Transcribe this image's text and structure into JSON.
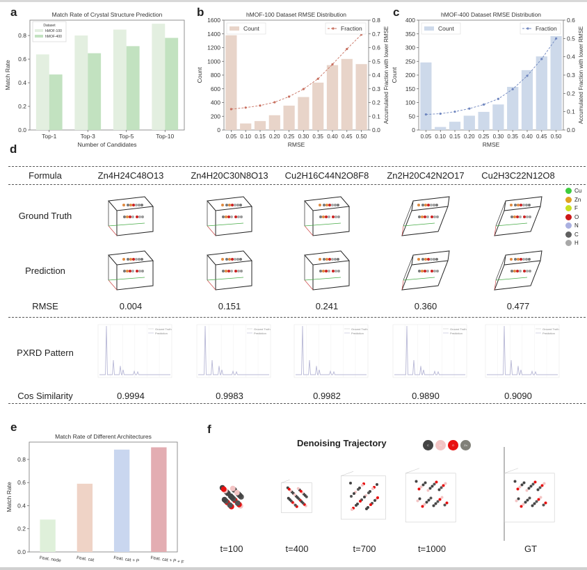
{
  "panels": {
    "a": {
      "letter": "a"
    },
    "b": {
      "letter": "b"
    },
    "c": {
      "letter": "c"
    },
    "d": {
      "letter": "d"
    },
    "e": {
      "letter": "e"
    },
    "f": {
      "letter": "f"
    }
  },
  "chart_data": [
    {
      "id": "a",
      "type": "bar",
      "title": "Match Rate of Crystal Structure Prediction",
      "xlabel": "Number of Candidates",
      "ylabel": "Match Rate",
      "categories": [
        "Top-1",
        "Top-3",
        "Top-5",
        "Top-10"
      ],
      "series": [
        {
          "name": "hMOF-100",
          "values": [
            0.64,
            0.8,
            0.85,
            0.9
          ],
          "color": "#e3efe0"
        },
        {
          "name": "hMOF-400",
          "values": [
            0.47,
            0.65,
            0.71,
            0.78
          ],
          "color": "#c2e2c0"
        }
      ],
      "legend_title": "Dataset",
      "legend_position": "top-left",
      "ylim": [
        0,
        0.93
      ],
      "yticks": [
        "0.0",
        "0.2",
        "0.4",
        "0.6",
        "0.8"
      ]
    },
    {
      "id": "b",
      "type": "bar",
      "title": "hMOF-100 Dataset RMSE Distribution",
      "xlabel": "RMSE",
      "ylabel": "Count",
      "y2label": "Accumulated Fraction with lower RMSE",
      "categories": [
        "0.05",
        "0.10",
        "0.15",
        "0.20",
        "0.25",
        "0.30",
        "0.35",
        "0.40",
        "0.45",
        "0.50"
      ],
      "series": [
        {
          "name": "Count",
          "kind": "bar",
          "axis": "left",
          "values": [
            1380,
            95,
            130,
            215,
            355,
            480,
            690,
            945,
            1035,
            960
          ],
          "color": "#e8d4c9"
        },
        {
          "name": "Fraction",
          "kind": "line",
          "axis": "right",
          "values": [
            0.152,
            0.163,
            0.178,
            0.202,
            0.243,
            0.298,
            0.373,
            0.478,
            0.59,
            0.695
          ],
          "color": "#c87060"
        }
      ],
      "ylim": [
        0,
        1600
      ],
      "y2lim": [
        0,
        0.8
      ],
      "yticks": [
        "0",
        "200",
        "400",
        "600",
        "800",
        "1000",
        "1200",
        "1400",
        "1600"
      ],
      "y2ticks": [
        "0.0",
        "0.1",
        "0.2",
        "0.3",
        "0.4",
        "0.5",
        "0.6",
        "0.7",
        "0.8"
      ],
      "legend_position": "top"
    },
    {
      "id": "c",
      "type": "bar",
      "title": "hMOF-400 Dataset RMSE Distribution",
      "xlabel": "RMSE",
      "ylabel": "Count",
      "y2label": "Accumulated Fraction with lower RMSE",
      "categories": [
        "0.05",
        "0.10",
        "0.15",
        "0.20",
        "0.25",
        "0.30",
        "0.35",
        "0.40",
        "0.45",
        "0.50"
      ],
      "series": [
        {
          "name": "Count",
          "kind": "bar",
          "axis": "left",
          "values": [
            246,
            11,
            30,
            52,
            66,
            93,
            157,
            218,
            268,
            342
          ],
          "color": "#cdd9ea"
        },
        {
          "name": "Fraction",
          "kind": "line",
          "axis": "right",
          "values": [
            0.085,
            0.089,
            0.1,
            0.117,
            0.139,
            0.17,
            0.223,
            0.296,
            0.388,
            0.5
          ],
          "color": "#6f86bf"
        }
      ],
      "ylim": [
        0,
        400
      ],
      "y2lim": [
        0,
        0.6
      ],
      "yticks": [
        "0",
        "50",
        "100",
        "150",
        "200",
        "250",
        "300",
        "350",
        "400"
      ],
      "y2ticks": [
        "0.0",
        "0.1",
        "0.2",
        "0.3",
        "0.4",
        "0.5",
        "0.6"
      ],
      "legend_position": "top"
    },
    {
      "id": "e",
      "type": "bar",
      "title": "Match Rate of Different Architectures",
      "xlabel": "",
      "ylabel": "Match Rate",
      "categories": [
        "Feat. node",
        "Feat. cat",
        "Feat. cat + P",
        "Feat. cat + P + F"
      ],
      "values": [
        0.28,
        0.59,
        0.885,
        0.905
      ],
      "colors": [
        "#dff0da",
        "#efd3c6",
        "#c9d6ef",
        "#e3adb2"
      ],
      "ylim": [
        0,
        0.95
      ],
      "yticks": [
        "0.0",
        "0.2",
        "0.4",
        "0.6",
        "0.8"
      ]
    }
  ],
  "table_d": {
    "row_labels": {
      "formula": "Formula",
      "ground_truth": "Ground Truth",
      "prediction": "Prediction",
      "rmse": "RMSE",
      "pxrd": "PXRD Pattern",
      "cos": "Cos Similarity"
    },
    "columns": [
      {
        "formula": "Zn4H24C48O13",
        "rmse": "0.004",
        "cos": "0.9994"
      },
      {
        "formula": "Zn4H20C30N8O13",
        "rmse": "0.151",
        "cos": "0.9983"
      },
      {
        "formula": "Cu2H16C44N2O8F8",
        "rmse": "0.241",
        "cos": "0.9982"
      },
      {
        "formula": "Zn2H20C42N2O17",
        "rmse": "0.360",
        "cos": "0.9890"
      },
      {
        "formula": "Cu2H3C22N12O8",
        "rmse": "0.477",
        "cos": "0.9090"
      }
    ],
    "pxrd_legend": [
      "Ground Truth",
      "Prediction"
    ],
    "element_legend": [
      {
        "label": "Cu",
        "color": "#3dcc3d"
      },
      {
        "label": "Zn",
        "color": "#e0a020"
      },
      {
        "label": "F",
        "color": "#c8e020"
      },
      {
        "label": "O",
        "color": "#cc1818"
      },
      {
        "label": "N",
        "color": "#aab0e0"
      },
      {
        "label": "C",
        "color": "#606060"
      },
      {
        "label": "H",
        "color": "#a8a8a8"
      }
    ]
  },
  "panel_f": {
    "title": "Denoising Trajectory",
    "chips": [
      {
        "label": "C",
        "color": "#444444"
      },
      {
        "label": "H",
        "color": "#f3c4c4"
      },
      {
        "label": "O",
        "color": "#e81010"
      },
      {
        "label": "Zn",
        "color": "#808078"
      }
    ],
    "steps": [
      "t=100",
      "t=400",
      "t=700",
      "t=1000",
      "GT"
    ]
  }
}
